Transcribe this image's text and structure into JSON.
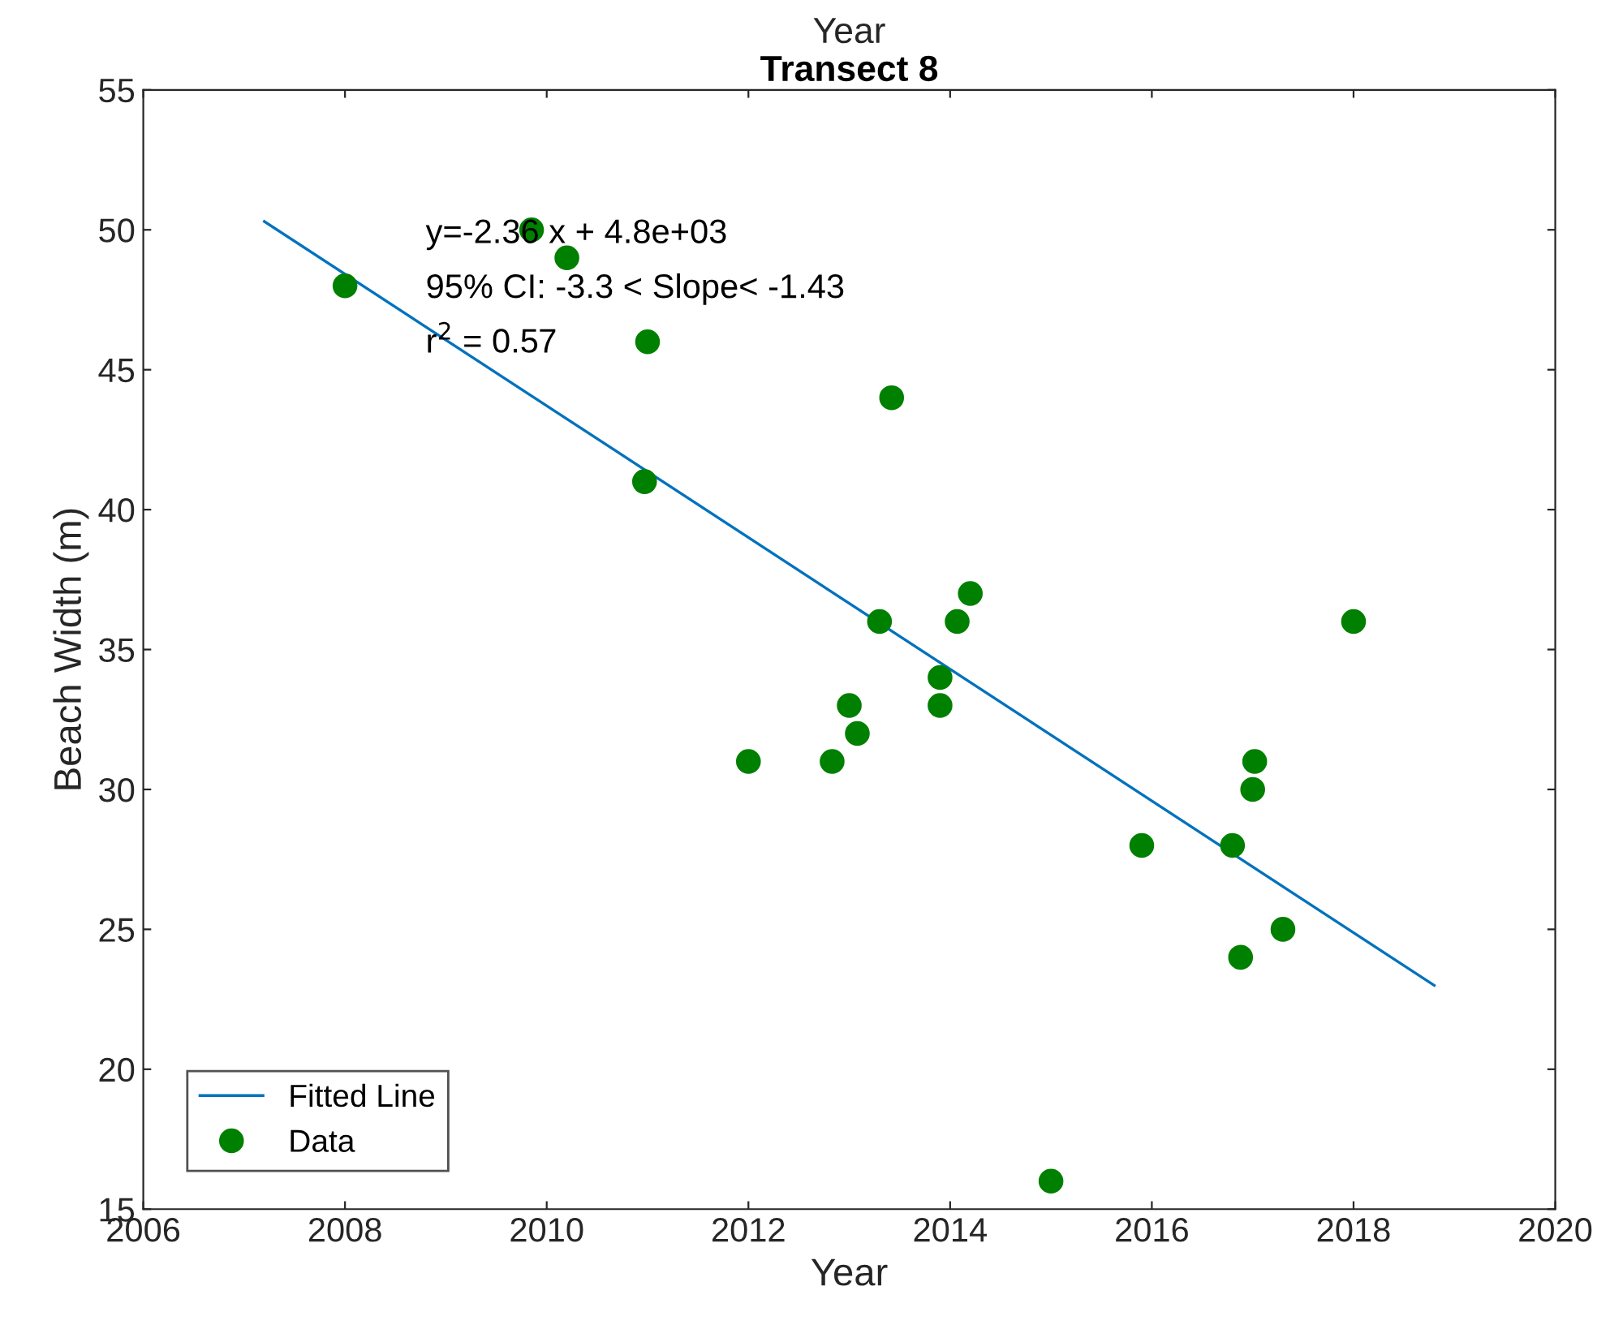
{
  "chart_data": {
    "type": "scatter",
    "subtitle": "Year",
    "title": "Transect 8",
    "xlabel": "Year",
    "ylabel": "Beach Width (m)",
    "xlim": [
      2006,
      2020
    ],
    "xticks": [
      2006,
      2008,
      2010,
      2012,
      2014,
      2016,
      2018,
      2020
    ],
    "ylim": [
      15,
      55
    ],
    "yticks": [
      15,
      20,
      25,
      30,
      35,
      40,
      45,
      50,
      55
    ],
    "grid": false,
    "legend": "bottom left",
    "series": [
      {
        "name": "Fitted Line",
        "type": "line",
        "color": "#0072bd",
        "marker": "none",
        "line_style": "solid",
        "x": [
          2007.2,
          2018.8
        ],
        "values": [
          50.3,
          23.0
        ]
      },
      {
        "name": "Data",
        "color": "#008000",
        "marker": "circle",
        "x": [
          2008.0,
          2009.85,
          2010.2,
          2011.0,
          2010.97,
          2012.0,
          2012.83,
          2013.0,
          2013.08,
          2013.3,
          2013.42,
          2013.9,
          2013.9,
          2014.07,
          2014.2,
          2015.0,
          2015.9,
          2016.8,
          2016.88,
          2017.0,
          2017.02,
          2017.3,
          2018.0
        ],
        "values": [
          48,
          50,
          49,
          46,
          41,
          31,
          31,
          33,
          32,
          36,
          44,
          34,
          33,
          36,
          37,
          16,
          28,
          28,
          24,
          30,
          31,
          25,
          36
        ]
      }
    ],
    "annotations": [
      "y=-2.36 x + 4.8e+03",
      "95% CI: -3.3 < Slope< -1.43",
      "r$^{2}$ = 0.57"
    ]
  }
}
